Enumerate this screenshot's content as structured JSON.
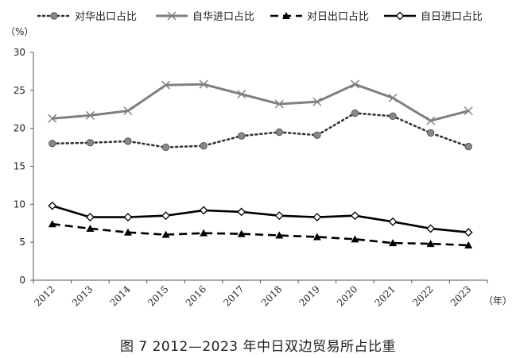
{
  "chart_data": {
    "type": "line",
    "caption": "图 7  2012—2023 年中日双边贸易所占比重",
    "y_unit": "（%）",
    "x_unit": "（年）",
    "x": [
      "2012",
      "2013",
      "2014",
      "2015",
      "2016",
      "2017",
      "2018",
      "2019",
      "2020",
      "2021",
      "2022",
      "2023"
    ],
    "ylim": [
      0,
      30
    ],
    "yticks": [
      0,
      5,
      10,
      15,
      20,
      25,
      30
    ],
    "grid": false,
    "legend_position": "top",
    "series": [
      {
        "name": "对华出口占比",
        "color": "#333333",
        "style": "dotted",
        "marker": "circle",
        "values": [
          18.0,
          18.1,
          18.3,
          17.5,
          17.7,
          19.0,
          19.5,
          19.1,
          22.0,
          21.6,
          19.4,
          17.6
        ]
      },
      {
        "name": "自华进口占比",
        "color": "#7f7f7f",
        "style": "solid",
        "marker": "x",
        "values": [
          21.3,
          21.7,
          22.3,
          25.7,
          25.8,
          24.5,
          23.2,
          23.5,
          25.8,
          24.0,
          21.0,
          22.3
        ]
      },
      {
        "name": "对日出口占比",
        "color": "#000000",
        "style": "dashed",
        "marker": "triangle",
        "values": [
          7.4,
          6.8,
          6.3,
          6.0,
          6.2,
          6.1,
          5.9,
          5.7,
          5.4,
          4.9,
          4.8,
          4.6
        ]
      },
      {
        "name": "自日进口占比",
        "color": "#000000",
        "style": "solid",
        "marker": "diamond",
        "values": [
          9.8,
          8.3,
          8.3,
          8.5,
          9.2,
          9.0,
          8.5,
          8.3,
          8.5,
          7.7,
          6.8,
          6.3
        ]
      }
    ]
  }
}
